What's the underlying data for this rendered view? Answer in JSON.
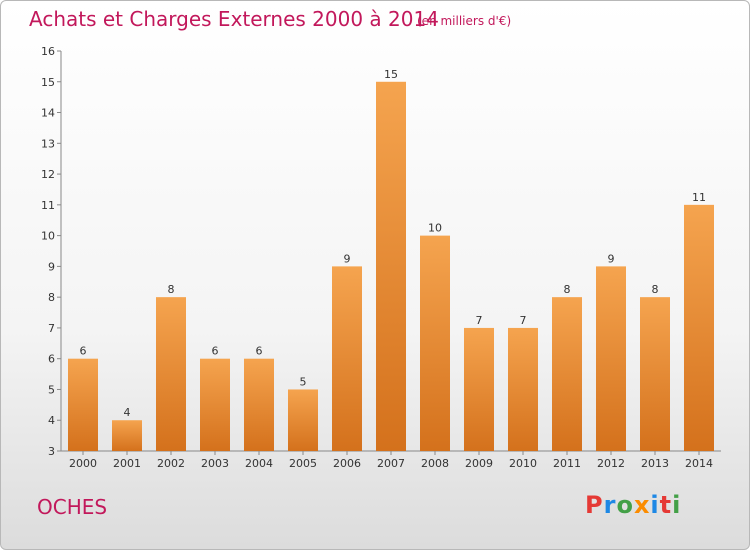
{
  "header": {
    "title": "Achats et Charges Externes 2000 à 2014",
    "unit": "(en milliers d'€)"
  },
  "footer": {
    "commune": "OCHES",
    "logo_text": "Proxiti"
  },
  "colors": {
    "accent": "#c2185b",
    "bar_top": "#f5a44f",
    "bar_bottom": "#d4711c",
    "logo": [
      "#e53935",
      "#1e88e5",
      "#43a047",
      "#fb8c00",
      "#1e88e5",
      "#e53935",
      "#43a047"
    ]
  },
  "chart_data": {
    "type": "bar",
    "categories": [
      "2000",
      "2001",
      "2002",
      "2003",
      "2004",
      "2005",
      "2006",
      "2007",
      "2008",
      "2009",
      "2010",
      "2011",
      "2012",
      "2013",
      "2014"
    ],
    "values": [
      6,
      4,
      8,
      6,
      6,
      5,
      9,
      15,
      10,
      7,
      7,
      8,
      9,
      8,
      11
    ],
    "title": "Achats et Charges Externes 2000 à 2014",
    "ylim": [
      3,
      16
    ],
    "yticks": [
      3,
      4,
      5,
      6,
      7,
      8,
      9,
      10,
      11,
      12,
      13,
      14,
      15,
      16
    ],
    "grid": false,
    "data_labels": true
  }
}
